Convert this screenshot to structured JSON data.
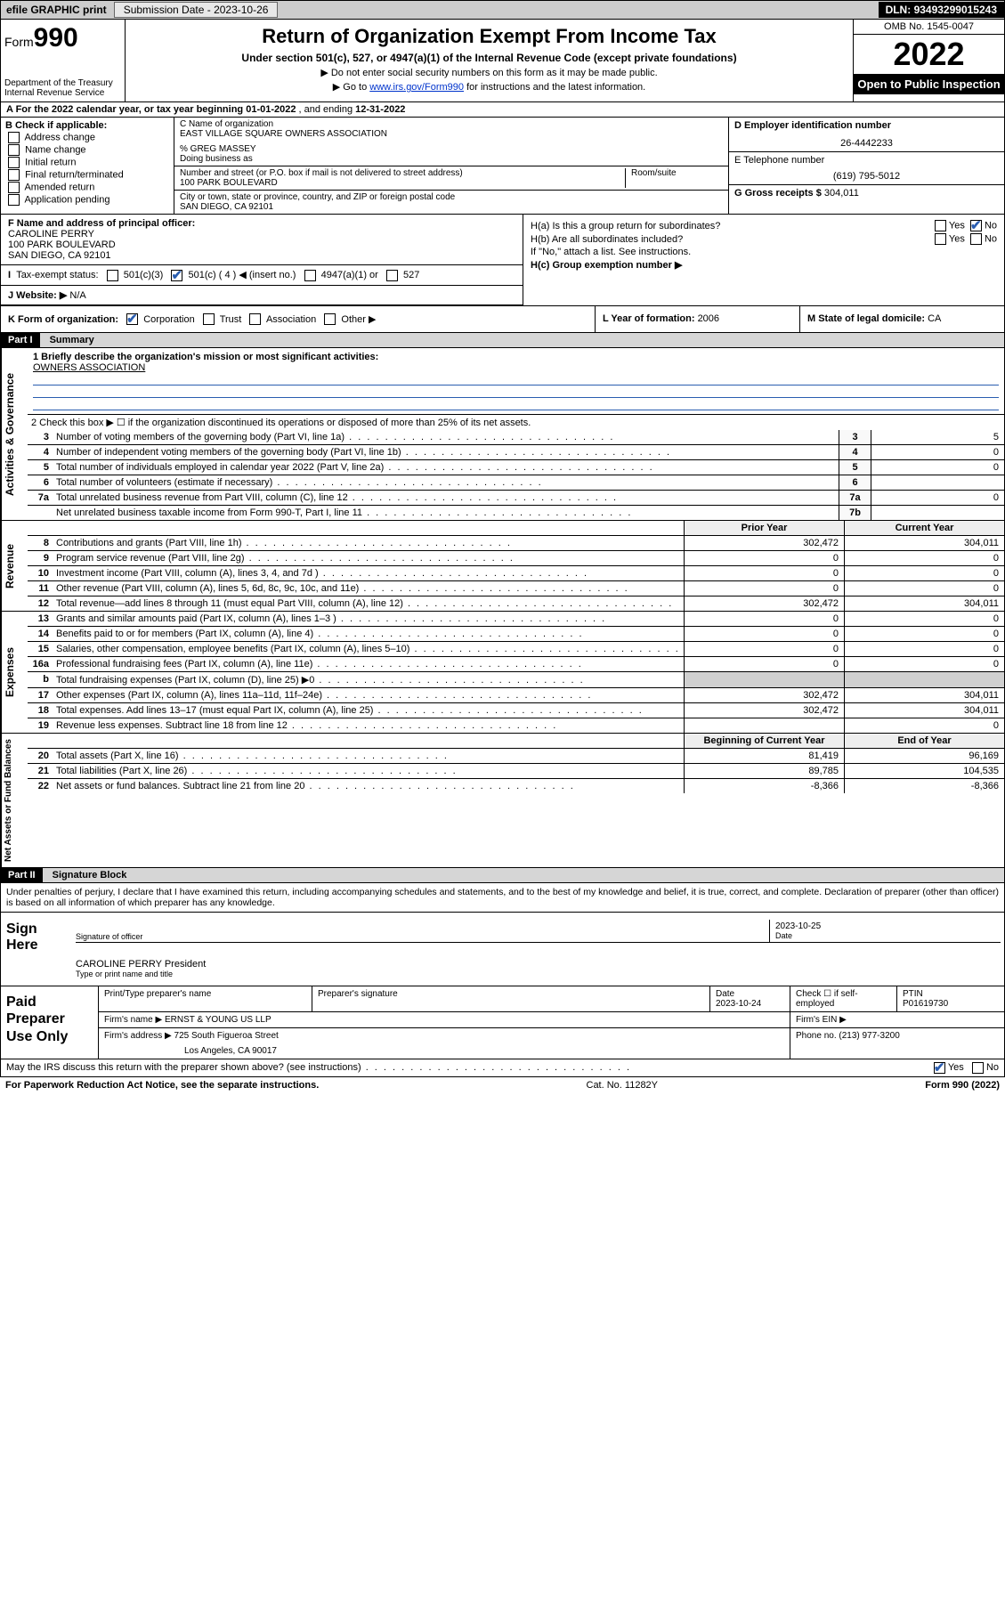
{
  "topbar": {
    "efile_label": "efile GRAPHIC print",
    "submission_label": "Submission Date - ",
    "submission_date": "2023-10-26",
    "dln_label": "DLN: ",
    "dln": "93493299015243"
  },
  "header": {
    "form_label": "Form",
    "form_number": "990",
    "dept": "Department of the Treasury\nInternal Revenue Service",
    "title": "Return of Organization Exempt From Income Tax",
    "subtitle": "Under section 501(c), 527, or 4947(a)(1) of the Internal Revenue Code (except private foundations)",
    "note1": "▶ Do not enter social security numbers on this form as it may be made public.",
    "note2_pre": "▶ Go to ",
    "note2_link": "www.irs.gov/Form990",
    "note2_post": " for instructions and the latest information.",
    "omb": "OMB No. 1545-0047",
    "year": "2022",
    "open_public": "Open to Public Inspection"
  },
  "rowA": {
    "text_pre": "A For the 2022 calendar year, or tax year beginning ",
    "begin": "01-01-2022",
    "mid": " , and ending ",
    "end": "12-31-2022"
  },
  "colB": {
    "title": "B Check if applicable:",
    "items": [
      "Address change",
      "Name change",
      "Initial return",
      "Final return/terminated",
      "Amended return",
      "Application pending"
    ]
  },
  "colC": {
    "name_label": "C Name of organization",
    "name": "EAST VILLAGE SQUARE OWNERS ASSOCIATION",
    "care_of": "% GREG MASSEY",
    "dba_label": "Doing business as",
    "street_label": "Number and street (or P.O. box if mail is not delivered to street address)",
    "street": "100 PARK BOULEVARD",
    "room_label": "Room/suite",
    "city_label": "City or town, state or province, country, and ZIP or foreign postal code",
    "city": "SAN DIEGO, CA  92101"
  },
  "colD": {
    "label": "D Employer identification number",
    "value": "26-4442233"
  },
  "colE": {
    "label": "E Telephone number",
    "value": "(619) 795-5012"
  },
  "colG": {
    "label": "G Gross receipts $ ",
    "value": "304,011"
  },
  "rowF": {
    "label": "F Name and address of principal officer:",
    "name": "CAROLINE PERRY",
    "addr1": "100 PARK BOULEVARD",
    "addr2": "SAN DIEGO, CA  92101"
  },
  "rowI": {
    "label": "Tax-exempt status:",
    "o1": "501(c)(3)",
    "o2": "501(c) ( 4 ) ◀ (insert no.)",
    "o3": "4947(a)(1) or",
    "o4": "527"
  },
  "rowJ": {
    "label": "J   Website: ▶ ",
    "value": "N/A"
  },
  "rowH": {
    "ha": "H(a)  Is this a group return for subordinates?",
    "hb": "H(b)  Are all subordinates included?",
    "hb_note": "If \"No,\" attach a list. See instructions.",
    "hc": "H(c)  Group exemption number ▶",
    "yes": "Yes",
    "no": "No"
  },
  "rowK": {
    "label": "K Form of organization:",
    "opts": [
      "Corporation",
      "Trust",
      "Association",
      "Other ▶"
    ]
  },
  "rowL": {
    "label": "L Year of formation: ",
    "value": "2006"
  },
  "rowM": {
    "label": "M State of legal domicile: ",
    "value": "CA"
  },
  "part1": {
    "hdr": "Part I",
    "title": "Summary"
  },
  "gov": {
    "l1": "1   Briefly describe the organization's mission or most significant activities:",
    "l1val": "OWNERS ASSOCIATION",
    "l2": "2   Check this box ▶ ☐  if the organization discontinued its operations or disposed of more than 25% of its net assets.",
    "rows": [
      {
        "n": "3",
        "d": "Number of voting members of the governing body (Part VI, line 1a)",
        "b": "3",
        "v": "5"
      },
      {
        "n": "4",
        "d": "Number of independent voting members of the governing body (Part VI, line 1b)",
        "b": "4",
        "v": "0"
      },
      {
        "n": "5",
        "d": "Total number of individuals employed in calendar year 2022 (Part V, line 2a)",
        "b": "5",
        "v": "0"
      },
      {
        "n": "6",
        "d": "Total number of volunteers (estimate if necessary)",
        "b": "6",
        "v": ""
      },
      {
        "n": "7a",
        "d": "Total unrelated business revenue from Part VIII, column (C), line 12",
        "b": "7a",
        "v": "0"
      },
      {
        "n": "",
        "d": "Net unrelated business taxable income from Form 990-T, Part I, line 11",
        "b": "7b",
        "v": ""
      }
    ],
    "tab": "Activities & Governance"
  },
  "rev": {
    "tab": "Revenue",
    "hdr_prior": "Prior Year",
    "hdr_curr": "Current Year",
    "rows": [
      {
        "n": "8",
        "d": "Contributions and grants (Part VIII, line 1h)",
        "p": "302,472",
        "c": "304,011"
      },
      {
        "n": "9",
        "d": "Program service revenue (Part VIII, line 2g)",
        "p": "0",
        "c": "0"
      },
      {
        "n": "10",
        "d": "Investment income (Part VIII, column (A), lines 3, 4, and 7d )",
        "p": "0",
        "c": "0"
      },
      {
        "n": "11",
        "d": "Other revenue (Part VIII, column (A), lines 5, 6d, 8c, 9c, 10c, and 11e)",
        "p": "0",
        "c": "0"
      },
      {
        "n": "12",
        "d": "Total revenue—add lines 8 through 11 (must equal Part VIII, column (A), line 12)",
        "p": "302,472",
        "c": "304,011"
      }
    ]
  },
  "exp": {
    "tab": "Expenses",
    "rows": [
      {
        "n": "13",
        "d": "Grants and similar amounts paid (Part IX, column (A), lines 1–3 )",
        "p": "0",
        "c": "0"
      },
      {
        "n": "14",
        "d": "Benefits paid to or for members (Part IX, column (A), line 4)",
        "p": "0",
        "c": "0"
      },
      {
        "n": "15",
        "d": "Salaries, other compensation, employee benefits (Part IX, column (A), lines 5–10)",
        "p": "0",
        "c": "0"
      },
      {
        "n": "16a",
        "d": "Professional fundraising fees (Part IX, column (A), line 11e)",
        "p": "0",
        "c": "0"
      },
      {
        "n": "b",
        "d": "Total fundraising expenses (Part IX, column (D), line 25) ▶0",
        "p": "",
        "c": "",
        "shaded": true
      },
      {
        "n": "17",
        "d": "Other expenses (Part IX, column (A), lines 11a–11d, 11f–24e)",
        "p": "302,472",
        "c": "304,011"
      },
      {
        "n": "18",
        "d": "Total expenses. Add lines 13–17 (must equal Part IX, column (A), line 25)",
        "p": "302,472",
        "c": "304,011"
      },
      {
        "n": "19",
        "d": "Revenue less expenses. Subtract line 18 from line 12",
        "p": "",
        "c": "0"
      }
    ]
  },
  "net": {
    "tab": "Net Assets or Fund Balances",
    "hdr_begin": "Beginning of Current Year",
    "hdr_end": "End of Year",
    "rows": [
      {
        "n": "20",
        "d": "Total assets (Part X, line 16)",
        "p": "81,419",
        "c": "96,169"
      },
      {
        "n": "21",
        "d": "Total liabilities (Part X, line 26)",
        "p": "89,785",
        "c": "104,535"
      },
      {
        "n": "22",
        "d": "Net assets or fund balances. Subtract line 21 from line 20",
        "p": "-8,366",
        "c": "-8,366"
      }
    ]
  },
  "part2": {
    "hdr": "Part II",
    "title": "Signature Block"
  },
  "sig": {
    "penalty": "Under penalties of perjury, I declare that I have examined this return, including accompanying schedules and statements, and to the best of my knowledge and belief, it is true, correct, and complete. Declaration of preparer (other than officer) is based on all information of which preparer has any knowledge.",
    "sign_here": "Sign Here",
    "sig_of_officer": "Signature of officer",
    "sig_date": "2023-10-25",
    "date_lbl": "Date",
    "officer_name": "CAROLINE PERRY  President",
    "type_name_lbl": "Type or print name and title"
  },
  "paid": {
    "label": "Paid Preparer Use Only",
    "h_name": "Print/Type preparer's name",
    "h_sig": "Preparer's signature",
    "h_date": "Date",
    "date": "2023-10-24",
    "check_lbl": "Check ☐ if self-employed",
    "ptin_lbl": "PTIN",
    "ptin": "P01619730",
    "firm_name_lbl": "Firm's name    ▶ ",
    "firm_name": "ERNST & YOUNG US LLP",
    "firm_ein_lbl": "Firm's EIN ▶",
    "firm_addr_lbl": "Firm's address ▶ ",
    "firm_addr1": "725 South Figueroa Street",
    "firm_addr2": "Los Angeles, CA  90017",
    "phone_lbl": "Phone no. ",
    "phone": "(213) 977-3200"
  },
  "footer": {
    "discuss": "May the IRS discuss this return with the preparer shown above? (see instructions)",
    "yes": "Yes",
    "no": "No",
    "pra": "For Paperwork Reduction Act Notice, see the separate instructions.",
    "cat": "Cat. No. 11282Y",
    "form": "Form 990 (2022)"
  }
}
